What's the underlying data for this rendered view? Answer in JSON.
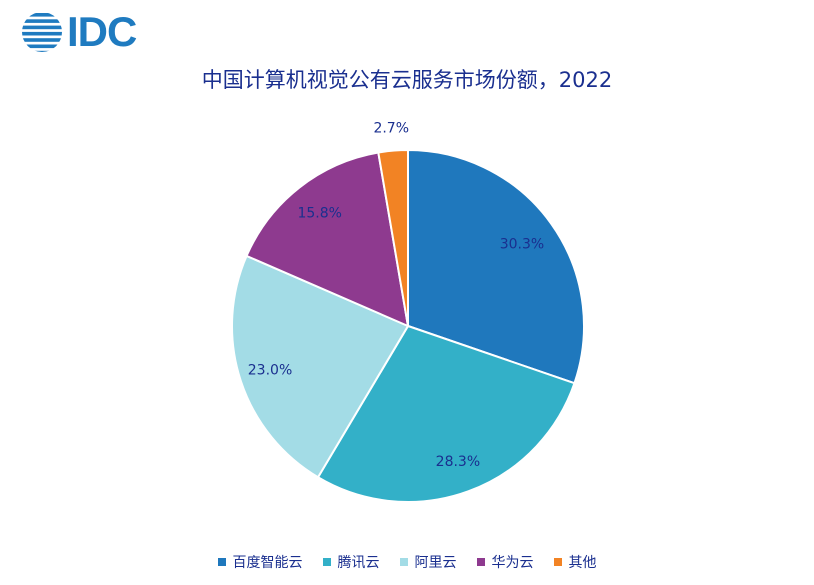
{
  "brand": {
    "logo_text": "IDC",
    "logo_color": "#1f7bc0"
  },
  "chart_data": {
    "type": "pie",
    "title": "中国计算机视觉公有云服务市场份额，2022",
    "categories": [
      "百度智能云",
      "腾讯云",
      "阿里云",
      "华为云",
      "其他"
    ],
    "values": [
      30.3,
      28.3,
      23.0,
      15.8,
      2.7
    ],
    "data_labels": [
      "30.3%",
      "28.3%",
      "23.0%",
      "15.8%",
      "2.7%"
    ],
    "colors": [
      "#1f78bd",
      "#33b0c8",
      "#a3dce6",
      "#8e3a8f",
      "#f28324"
    ],
    "start_angle_deg": 0,
    "direction": "clockwise",
    "legend_position": "bottom"
  }
}
